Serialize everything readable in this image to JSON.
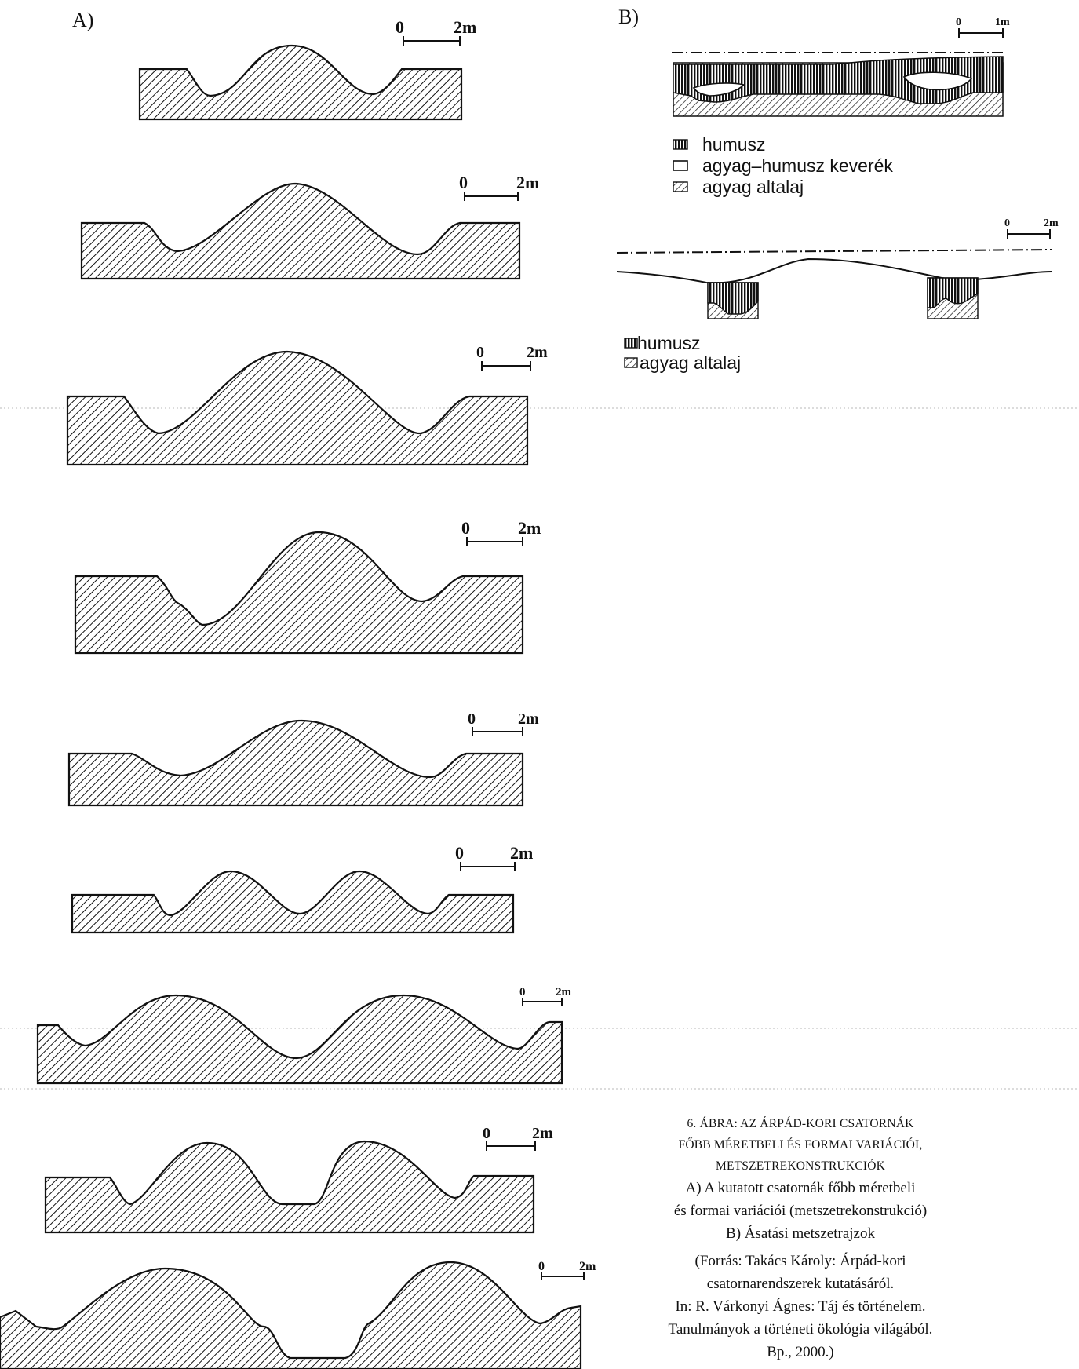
{
  "panel_a": {
    "label": "A)",
    "scale_start": "0",
    "scale_end": "2m"
  },
  "panel_b": {
    "label": "B)",
    "section1": {
      "scale_start": "0",
      "scale_end": "1m",
      "legend": [
        "humusz",
        "agyag–humusz keverék",
        "agyag altalaj"
      ]
    },
    "section2": {
      "scale_start": "0",
      "scale_end": "2m",
      "legend": [
        "humusz",
        "agyag altalaj"
      ]
    }
  },
  "caption": {
    "title_lines": [
      "6. ÁBRA: AZ ÁRPÁD-KORI CSATORNÁK",
      "FŐBB MÉRETBELI ÉS FORMAI VARIÁCIÓI,",
      "METSZETREKONSTRUKCIÓK"
    ],
    "desc_lines": [
      "A) A kutatott csatornák főbb méretbeli",
      "és formai variációi (metszetrekonstrukció)",
      "B) Ásatási metszetrajzok"
    ],
    "source_lines": [
      "(Forrás: Takács Károly: Árpád-kori",
      "csatornarendszerek kutatásáról.",
      "In: R. Várkonyi Ágnes: Táj és történelem.",
      "Tanulmányok a történeti ökológia világából.",
      "Bp., 2000.)"
    ]
  }
}
